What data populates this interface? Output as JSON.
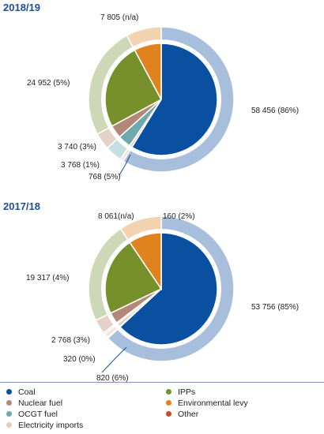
{
  "chart_data": [
    {
      "type": "pie",
      "title": "2018/19",
      "categories": [
        "Coal",
        "Nuclear fuel",
        "OCGT fuel",
        "Electricity imports",
        "IPPs",
        "Environmental levy",
        "Other"
      ],
      "values": [
        58456,
        3740,
        3768,
        768,
        24952,
        7805,
        0
      ],
      "labels": [
        "58 456 (86%)",
        "3 740 (3%)",
        "3 768 (1%)",
        "768 (5%)",
        "24 952 (5%)",
        "7 805 (n/a)"
      ],
      "label_categories": [
        "Coal",
        "Nuclear fuel",
        "OCGT fuel",
        "Electricity imports",
        "IPPs",
        "Environmental levy"
      ]
    },
    {
      "type": "pie",
      "title": "2017/18",
      "categories": [
        "Coal",
        "Nuclear fuel",
        "OCGT fuel",
        "Electricity imports",
        "IPPs",
        "Environmental levy",
        "Other"
      ],
      "values": [
        53756,
        2768,
        320,
        820,
        19317,
        8061,
        160
      ],
      "labels": [
        "53 756 (85%)",
        "2 768 (3%)",
        "320 (0%)",
        "820 (6%)",
        "19 317 (4%)",
        "8 061(n/a)",
        "160 (2%)"
      ],
      "label_categories": [
        "Coal",
        "Nuclear fuel",
        "OCGT fuel",
        "Electricity imports",
        "IPPs",
        "Environmental levy",
        "Other"
      ]
    }
  ],
  "legend": [
    {
      "label": "Coal",
      "color": "#0a50a1"
    },
    {
      "label": "Nuclear fuel",
      "color": "#b48878"
    },
    {
      "label": "OCGT fuel",
      "color": "#6fa8ad"
    },
    {
      "label": "Electricity imports",
      "color": "#e6c9bd"
    },
    {
      "label": "IPPs",
      "color": "#78902c"
    },
    {
      "label": "Environmental levy",
      "color": "#e0821e"
    },
    {
      "label": "Other",
      "color": "#c0502a"
    }
  ],
  "colors": {
    "Coal": {
      "inner": "#0a50a1",
      "ring": "#a7bfdc"
    },
    "Nuclear fuel": {
      "inner": "#b48878",
      "ring": "#e4d2ca"
    },
    "OCGT fuel": {
      "inner": "#6fa8ad",
      "ring": "#c5dfe1"
    },
    "Electricity imports": {
      "inner": "#e6c9bd",
      "ring": "#f3e5de"
    },
    "IPPs": {
      "inner": "#78902c",
      "ring": "#cfd8b6"
    },
    "Environmental levy": {
      "inner": "#e0821e",
      "ring": "#f3d2b0"
    },
    "Other": {
      "inner": "#c0502a",
      "ring": "#e8b9a8"
    }
  }
}
